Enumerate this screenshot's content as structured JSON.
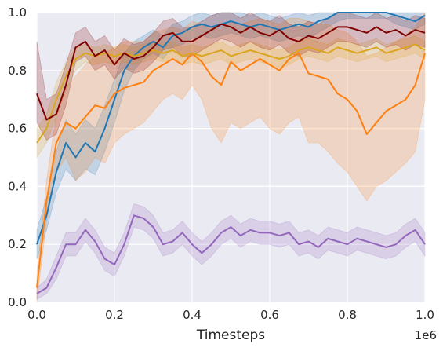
{
  "chart_data": {
    "type": "line",
    "title": "",
    "xlabel": "Timesteps",
    "ylabel": "",
    "x_offset_label": "1e6",
    "xlim": [
      0.0,
      1.0
    ],
    "ylim": [
      0.0,
      1.0
    ],
    "x_ticks": [
      "0.0",
      "0.2",
      "0.4",
      "0.6",
      "0.8",
      "1.0"
    ],
    "y_ticks": [
      "0.0",
      "0.2",
      "0.4",
      "0.6",
      "0.8",
      "1.0"
    ],
    "grid": true,
    "legend": "none",
    "background": "#eaeaf2",
    "x": [
      0.0,
      0.025,
      0.05,
      0.075,
      0.1,
      0.125,
      0.15,
      0.175,
      0.2,
      0.225,
      0.25,
      0.275,
      0.3,
      0.325,
      0.35,
      0.375,
      0.4,
      0.425,
      0.45,
      0.475,
      0.5,
      0.525,
      0.55,
      0.575,
      0.6,
      0.625,
      0.65,
      0.675,
      0.7,
      0.725,
      0.75,
      0.775,
      0.8,
      0.825,
      0.85,
      0.875,
      0.9,
      0.925,
      0.95,
      0.975,
      1.0
    ],
    "series": [
      {
        "color": "#1f77b4",
        "values": [
          0.2,
          0.3,
          0.45,
          0.55,
          0.5,
          0.55,
          0.52,
          0.6,
          0.7,
          0.8,
          0.85,
          0.88,
          0.9,
          0.88,
          0.92,
          0.93,
          0.95,
          0.96,
          0.95,
          0.96,
          0.97,
          0.96,
          0.95,
          0.96,
          0.95,
          0.94,
          0.95,
          0.96,
          0.95,
          0.97,
          0.98,
          1.0,
          1.0,
          1.0,
          1.0,
          1.0,
          1.0,
          0.99,
          0.98,
          0.97,
          0.99
        ],
        "lower": [
          0.15,
          0.25,
          0.38,
          0.46,
          0.42,
          0.46,
          0.44,
          0.52,
          0.62,
          0.73,
          0.8,
          0.84,
          0.86,
          0.84,
          0.88,
          0.89,
          0.91,
          0.92,
          0.91,
          0.92,
          0.93,
          0.92,
          0.91,
          0.92,
          0.91,
          0.9,
          0.91,
          0.92,
          0.91,
          0.93,
          0.95,
          0.97,
          0.98,
          0.98,
          0.98,
          0.98,
          0.98,
          0.96,
          0.95,
          0.94,
          0.96
        ],
        "upper": [
          0.25,
          0.36,
          0.52,
          0.63,
          0.58,
          0.63,
          0.6,
          0.68,
          0.77,
          0.86,
          0.9,
          0.92,
          0.94,
          0.92,
          0.96,
          0.97,
          0.99,
          1.0,
          0.99,
          1.0,
          1.0,
          1.0,
          0.99,
          1.0,
          0.99,
          0.98,
          0.99,
          1.0,
          0.99,
          1.0,
          1.0,
          1.0,
          1.0,
          1.0,
          1.0,
          1.0,
          1.0,
          1.0,
          1.0,
          1.0,
          1.0
        ]
      },
      {
        "color": "#ff7f0e",
        "values": [
          0.05,
          0.35,
          0.55,
          0.62,
          0.6,
          0.64,
          0.68,
          0.67,
          0.72,
          0.74,
          0.75,
          0.76,
          0.8,
          0.82,
          0.84,
          0.82,
          0.86,
          0.83,
          0.78,
          0.75,
          0.83,
          0.8,
          0.82,
          0.84,
          0.82,
          0.8,
          0.84,
          0.86,
          0.79,
          0.78,
          0.77,
          0.72,
          0.7,
          0.66,
          0.58,
          0.62,
          0.66,
          0.68,
          0.7,
          0.75,
          0.86
        ],
        "lower": [
          0.0,
          0.28,
          0.45,
          0.5,
          0.42,
          0.45,
          0.5,
          0.48,
          0.55,
          0.58,
          0.6,
          0.62,
          0.66,
          0.7,
          0.72,
          0.7,
          0.75,
          0.7,
          0.6,
          0.55,
          0.62,
          0.6,
          0.62,
          0.64,
          0.6,
          0.58,
          0.62,
          0.64,
          0.55,
          0.55,
          0.52,
          0.48,
          0.45,
          0.4,
          0.35,
          0.4,
          0.42,
          0.45,
          0.48,
          0.52,
          0.7
        ],
        "upper": [
          0.1,
          0.42,
          0.65,
          0.74,
          0.78,
          0.82,
          0.85,
          0.86,
          0.88,
          0.9,
          0.9,
          0.9,
          0.93,
          0.94,
          0.95,
          0.94,
          0.97,
          0.96,
          0.95,
          0.94,
          0.97,
          0.96,
          0.97,
          0.98,
          0.97,
          0.96,
          0.98,
          0.98,
          0.97,
          0.96,
          0.96,
          0.94,
          0.93,
          0.9,
          0.85,
          0.86,
          0.88,
          0.9,
          0.92,
          0.95,
          1.0
        ]
      },
      {
        "color": "#daa520",
        "values": [
          0.55,
          0.6,
          0.7,
          0.78,
          0.84,
          0.86,
          0.85,
          0.86,
          0.85,
          0.86,
          0.85,
          0.86,
          0.87,
          0.86,
          0.87,
          0.85,
          0.86,
          0.85,
          0.86,
          0.87,
          0.85,
          0.86,
          0.87,
          0.86,
          0.85,
          0.84,
          0.85,
          0.87,
          0.88,
          0.87,
          0.86,
          0.88,
          0.87,
          0.86,
          0.87,
          0.88,
          0.86,
          0.87,
          0.88,
          0.89,
          0.87
        ],
        "lower": [
          0.5,
          0.55,
          0.64,
          0.73,
          0.8,
          0.83,
          0.82,
          0.83,
          0.82,
          0.83,
          0.82,
          0.83,
          0.84,
          0.83,
          0.84,
          0.82,
          0.83,
          0.82,
          0.83,
          0.84,
          0.82,
          0.83,
          0.84,
          0.83,
          0.82,
          0.81,
          0.82,
          0.84,
          0.85,
          0.84,
          0.83,
          0.85,
          0.84,
          0.83,
          0.84,
          0.85,
          0.83,
          0.84,
          0.85,
          0.86,
          0.84
        ],
        "upper": [
          0.6,
          0.65,
          0.76,
          0.83,
          0.88,
          0.89,
          0.88,
          0.89,
          0.88,
          0.89,
          0.88,
          0.89,
          0.9,
          0.89,
          0.9,
          0.88,
          0.89,
          0.88,
          0.89,
          0.9,
          0.88,
          0.89,
          0.9,
          0.89,
          0.88,
          0.87,
          0.88,
          0.9,
          0.91,
          0.9,
          0.89,
          0.91,
          0.9,
          0.89,
          0.9,
          0.91,
          0.89,
          0.9,
          0.91,
          0.92,
          0.9
        ]
      },
      {
        "color": "#800000",
        "values": [
          0.72,
          0.63,
          0.65,
          0.75,
          0.88,
          0.9,
          0.85,
          0.87,
          0.82,
          0.86,
          0.84,
          0.85,
          0.88,
          0.92,
          0.93,
          0.9,
          0.9,
          0.92,
          0.94,
          0.96,
          0.95,
          0.93,
          0.95,
          0.93,
          0.92,
          0.94,
          0.91,
          0.9,
          0.92,
          0.91,
          0.93,
          0.95,
          0.95,
          0.94,
          0.93,
          0.95,
          0.93,
          0.94,
          0.92,
          0.94,
          0.93
        ],
        "lower": [
          0.62,
          0.56,
          0.58,
          0.68,
          0.83,
          0.85,
          0.8,
          0.82,
          0.77,
          0.81,
          0.79,
          0.8,
          0.83,
          0.87,
          0.88,
          0.85,
          0.85,
          0.87,
          0.89,
          0.91,
          0.9,
          0.88,
          0.9,
          0.88,
          0.87,
          0.89,
          0.86,
          0.85,
          0.87,
          0.86,
          0.88,
          0.9,
          0.9,
          0.89,
          0.88,
          0.9,
          0.88,
          0.89,
          0.87,
          0.89,
          0.88
        ],
        "upper": [
          0.9,
          0.7,
          0.72,
          0.82,
          0.93,
          0.95,
          0.9,
          0.92,
          0.87,
          0.91,
          0.89,
          0.9,
          0.93,
          0.97,
          0.98,
          0.95,
          0.95,
          0.97,
          0.99,
          1.0,
          1.0,
          0.98,
          1.0,
          0.98,
          0.97,
          0.99,
          0.96,
          0.95,
          0.97,
          0.96,
          0.98,
          1.0,
          1.0,
          0.99,
          0.98,
          1.0,
          0.98,
          0.99,
          0.97,
          0.99,
          0.98
        ]
      },
      {
        "color": "#9467bd",
        "values": [
          0.03,
          0.05,
          0.12,
          0.2,
          0.2,
          0.25,
          0.21,
          0.15,
          0.13,
          0.2,
          0.3,
          0.29,
          0.26,
          0.2,
          0.21,
          0.24,
          0.2,
          0.17,
          0.2,
          0.24,
          0.26,
          0.23,
          0.25,
          0.24,
          0.24,
          0.23,
          0.24,
          0.2,
          0.21,
          0.19,
          0.22,
          0.21,
          0.2,
          0.22,
          0.21,
          0.2,
          0.19,
          0.2,
          0.23,
          0.25,
          0.2
        ],
        "lower": [
          0.01,
          0.03,
          0.08,
          0.16,
          0.16,
          0.21,
          0.17,
          0.11,
          0.09,
          0.16,
          0.26,
          0.25,
          0.22,
          0.16,
          0.17,
          0.2,
          0.16,
          0.13,
          0.16,
          0.2,
          0.22,
          0.19,
          0.21,
          0.2,
          0.2,
          0.19,
          0.2,
          0.16,
          0.17,
          0.15,
          0.18,
          0.17,
          0.16,
          0.18,
          0.17,
          0.16,
          0.15,
          0.16,
          0.19,
          0.21,
          0.16
        ],
        "upper": [
          0.05,
          0.08,
          0.16,
          0.24,
          0.24,
          0.29,
          0.25,
          0.19,
          0.17,
          0.24,
          0.34,
          0.33,
          0.3,
          0.24,
          0.25,
          0.28,
          0.24,
          0.21,
          0.24,
          0.28,
          0.3,
          0.27,
          0.29,
          0.28,
          0.28,
          0.27,
          0.28,
          0.24,
          0.25,
          0.23,
          0.26,
          0.25,
          0.24,
          0.26,
          0.25,
          0.24,
          0.23,
          0.24,
          0.27,
          0.29,
          0.24
        ]
      }
    ]
  }
}
